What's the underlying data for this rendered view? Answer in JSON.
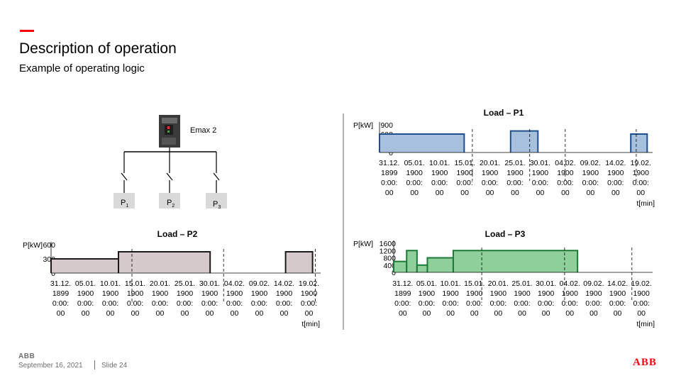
{
  "slide": {
    "title": "Description of operation",
    "subtitle": "Example of operating logic",
    "accent_color": "#ff000f"
  },
  "diagram": {
    "breaker_label": "Emax 2",
    "feeders": [
      {
        "label": "P",
        "sub": "1"
      },
      {
        "label": "P",
        "sub": "2"
      },
      {
        "label": "P",
        "sub": "3"
      }
    ]
  },
  "footer": {
    "date": "September 16, 2021",
    "slide_number": "Slide 24",
    "footer_logo": "ABB",
    "brand_logo": "ABB"
  },
  "chart_data": [
    {
      "type": "area",
      "title": "Load – P1",
      "ylabel": "P[kW]",
      "xlabel": "t[min]",
      "yticks": [
        "900",
        "600",
        "300",
        "0"
      ],
      "ylim": [
        0,
        900
      ],
      "x_tick_labels": [
        "31.12.1899 0:00:00",
        "05.01.1900 0:00:00",
        "10.01.1900 0:00:00",
        "15.01.1900 0:00:00",
        "20.01.1900 0:00:00",
        "25.01.1900 0:00:00",
        "30.01.1900 0:00:00",
        "04.02.1900 0:00:00",
        "09.02.1900 0:00:00",
        "14.02.1900 0:00:00",
        "19.02.1900 0:00:00"
      ],
      "fill_color": "#a6c0de",
      "line_color": "#1f4e8c",
      "segments": [
        {
          "x_start": 0,
          "x_end": 15.5,
          "value": 600
        },
        {
          "x_start": 24,
          "x_end": 29,
          "value": 700
        },
        {
          "x_start": 46,
          "x_end": 49,
          "value": 600
        }
      ],
      "markers_at": [
        17,
        27.5,
        34,
        47
      ]
    },
    {
      "type": "area",
      "title": "Load – P2",
      "ylabel": "P[kW]",
      "xlabel": "t[min]",
      "yticks": [
        "600",
        "300",
        "0"
      ],
      "ylim": [
        0,
        600
      ],
      "x_tick_labels": [
        "31.12.1899 0:00:00",
        "05.01.1900 0:00:00",
        "10.01.1900 0:00:00",
        "15.01.1900 0:00:00",
        "20.01.1900 0:00:00",
        "25.01.1900 0:00:00",
        "30.01.1900 0:00:00",
        "04.02.1900 0:00:00",
        "09.02.1900 0:00:00",
        "14.02.1900 0:00:00",
        "19.02.1900 0:00:00"
      ],
      "fill_color": "#d5c9cc",
      "line_color": "#1a1a1a",
      "segments": [
        {
          "x_start": 0,
          "x_end": 12.5,
          "value": 300
        },
        {
          "x_start": 12.5,
          "x_end": 29.5,
          "value": 450
        },
        {
          "x_start": 43.5,
          "x_end": 48.5,
          "value": 450
        }
      ],
      "markers_at": [
        15,
        32,
        49
      ]
    },
    {
      "type": "area",
      "title": "Load – P3",
      "ylabel": "P[kW]",
      "xlabel": "t[min]",
      "yticks": [
        "1600",
        "1200",
        "800",
        "400",
        "0"
      ],
      "ylim": [
        0,
        1600
      ],
      "x_tick_labels": [
        "31.12.1899 0:00:00",
        "05.01.1900 0:00:00",
        "10.01.1900 0:00:00",
        "15.01.1900 0:00:00",
        "20.01.1900 0:00:00",
        "25.01.1900 0:00:00",
        "30.01.1900 0:00:00",
        "04.02.1900 0:00:00",
        "09.02.1900 0:00:00",
        "14.02.1900 0:00:00",
        "19.02.1900 0:00:00"
      ],
      "fill_color": "#8fcf9c",
      "line_color": "#1a7a35",
      "segments": [
        {
          "x_start": 0,
          "x_end": 2.5,
          "value": 600
        },
        {
          "x_start": 2.5,
          "x_end": 4.5,
          "value": 1200
        },
        {
          "x_start": 4.5,
          "x_end": 6.5,
          "value": 400
        },
        {
          "x_start": 6.5,
          "x_end": 11.5,
          "value": 800
        },
        {
          "x_start": 11.5,
          "x_end": 35.5,
          "value": 1200
        }
      ],
      "markers_at": [
        17,
        33,
        46
      ]
    }
  ]
}
